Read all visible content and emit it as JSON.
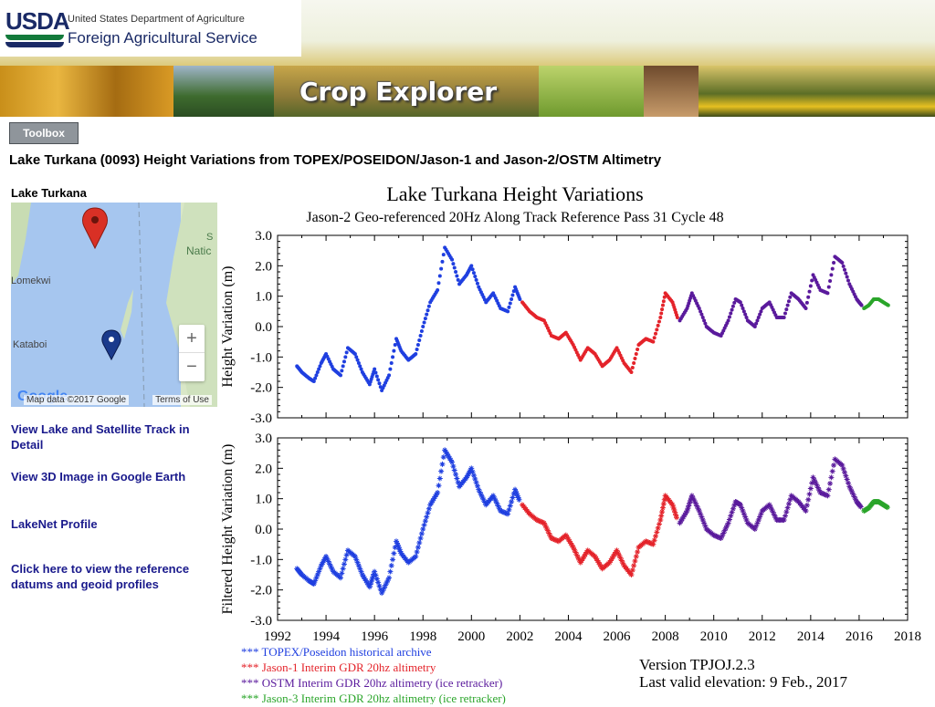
{
  "header": {
    "usda": "USDA",
    "department": "United States Department of Agriculture",
    "agency": "Foreign Agricultural Service",
    "app_title": "Crop Explorer"
  },
  "toolbox_label": "Toolbox",
  "page_heading": "Lake Turkana (0093) Height Variations from TOPEX/POSEIDON/Jason-1 and Jason-2/OSTM Altimetry",
  "map": {
    "title": "Lake Turkana",
    "labels": [
      "Lomekwi",
      "Kataboi",
      "S",
      "Natic"
    ],
    "zoom_in": "+",
    "zoom_out": "−",
    "google": "Google",
    "map_data": "Map data ©2017 Google",
    "terms": "Terms of Use"
  },
  "links": [
    "View Lake and Satellite Track in Detail",
    "View 3D Image in Google Earth",
    "LakeNet Profile",
    "Click here to view the reference datums and geoid profiles"
  ],
  "chart_data": {
    "type": "scatter",
    "title": "Lake Turkana Height Variations",
    "subtitle": "Jason-2 Geo-referenced 20Hz Along Track Reference Pass  31 Cycle  48",
    "panels": [
      {
        "ylabel": "Height Variation (m)",
        "ylim": [
          -3.0,
          3.0
        ],
        "yticks": [
          "3.0",
          "2.0",
          "1.0",
          "0.0",
          "-1.0",
          "-2.0",
          "-3.0"
        ]
      },
      {
        "ylabel": "Filtered Height Variation (m)",
        "ylim": [
          -3.0,
          3.0
        ],
        "yticks": [
          "3.0",
          "2.0",
          "1.0",
          "0.0",
          "-1.0",
          "-2.0",
          "-3.0"
        ]
      }
    ],
    "xlim": [
      1992,
      2018
    ],
    "xticks": [
      "1992",
      "1994",
      "1996",
      "1998",
      "2000",
      "2002",
      "2004",
      "2006",
      "2008",
      "2010",
      "2012",
      "2014",
      "2016",
      "2018"
    ],
    "series": [
      {
        "name": "*** TOPEX/Poseidon historical archive",
        "color": "#1f3fe0",
        "points": [
          [
            1992.8,
            -1.3
          ],
          [
            1993.0,
            -1.5
          ],
          [
            1993.3,
            -1.7
          ],
          [
            1993.5,
            -1.8
          ],
          [
            1993.8,
            -1.2
          ],
          [
            1994.0,
            -0.9
          ],
          [
            1994.3,
            -1.4
          ],
          [
            1994.6,
            -1.6
          ],
          [
            1994.9,
            -0.7
          ],
          [
            1995.2,
            -0.9
          ],
          [
            1995.5,
            -1.5
          ],
          [
            1995.8,
            -1.9
          ],
          [
            1996.0,
            -1.4
          ],
          [
            1996.3,
            -2.1
          ],
          [
            1996.6,
            -1.6
          ],
          [
            1996.9,
            -0.4
          ],
          [
            1997.1,
            -0.8
          ],
          [
            1997.4,
            -1.1
          ],
          [
            1997.7,
            -0.9
          ],
          [
            1998.0,
            0.0
          ],
          [
            1998.3,
            0.8
          ],
          [
            1998.6,
            1.2
          ],
          [
            1998.9,
            2.6
          ],
          [
            1999.2,
            2.2
          ],
          [
            1999.5,
            1.4
          ],
          [
            1999.8,
            1.7
          ],
          [
            2000.0,
            2.0
          ],
          [
            2000.3,
            1.3
          ],
          [
            2000.6,
            0.8
          ],
          [
            2000.9,
            1.1
          ],
          [
            2001.2,
            0.6
          ],
          [
            2001.5,
            0.5
          ],
          [
            2001.8,
            1.3
          ],
          [
            2002.0,
            0.9
          ]
        ]
      },
      {
        "name": "*** Jason-1 Interim GDR 20hz altimetry",
        "color": "#e4232a",
        "points": [
          [
            2002.1,
            0.8
          ],
          [
            2002.4,
            0.5
          ],
          [
            2002.7,
            0.3
          ],
          [
            2003.0,
            0.2
          ],
          [
            2003.3,
            -0.3
          ],
          [
            2003.6,
            -0.4
          ],
          [
            2003.9,
            -0.2
          ],
          [
            2004.2,
            -0.6
          ],
          [
            2004.5,
            -1.1
          ],
          [
            2004.8,
            -0.7
          ],
          [
            2005.1,
            -0.9
          ],
          [
            2005.4,
            -1.3
          ],
          [
            2005.7,
            -1.1
          ],
          [
            2006.0,
            -0.7
          ],
          [
            2006.3,
            -1.2
          ],
          [
            2006.6,
            -1.5
          ],
          [
            2006.9,
            -0.6
          ],
          [
            2007.2,
            -0.4
          ],
          [
            2007.5,
            -0.5
          ],
          [
            2007.8,
            0.3
          ],
          [
            2008.0,
            1.1
          ],
          [
            2008.3,
            0.8
          ],
          [
            2008.5,
            0.3
          ]
        ]
      },
      {
        "name": "*** OSTM  Interim GDR 20hz altimetry (ice retracker)",
        "color": "#5a1a9c",
        "points": [
          [
            2008.6,
            0.2
          ],
          [
            2008.9,
            0.6
          ],
          [
            2009.1,
            1.1
          ],
          [
            2009.4,
            0.6
          ],
          [
            2009.7,
            0.0
          ],
          [
            2010.0,
            -0.2
          ],
          [
            2010.3,
            -0.3
          ],
          [
            2010.6,
            0.2
          ],
          [
            2010.9,
            0.9
          ],
          [
            2011.1,
            0.8
          ],
          [
            2011.4,
            0.2
          ],
          [
            2011.7,
            0.0
          ],
          [
            2012.0,
            0.6
          ],
          [
            2012.3,
            0.8
          ],
          [
            2012.6,
            0.3
          ],
          [
            2012.9,
            0.3
          ],
          [
            2013.2,
            1.1
          ],
          [
            2013.5,
            0.9
          ],
          [
            2013.8,
            0.6
          ],
          [
            2014.1,
            1.7
          ],
          [
            2014.4,
            1.2
          ],
          [
            2014.7,
            1.1
          ],
          [
            2015.0,
            2.3
          ],
          [
            2015.3,
            2.1
          ],
          [
            2015.6,
            1.4
          ],
          [
            2015.9,
            0.9
          ],
          [
            2016.1,
            0.7
          ]
        ]
      },
      {
        "name": "*** Jason-3  Interim GDR 20hz altimetry (ice retracker)",
        "color": "#2aa52a",
        "points": [
          [
            2016.2,
            0.6
          ],
          [
            2016.4,
            0.7
          ],
          [
            2016.6,
            0.9
          ],
          [
            2016.8,
            0.9
          ],
          [
            2017.0,
            0.8
          ],
          [
            2017.2,
            0.7
          ]
        ]
      }
    ],
    "version": "Version TPJOJ.2.3",
    "last_valid": "Last valid elevation:  9  Feb.,  2017"
  }
}
